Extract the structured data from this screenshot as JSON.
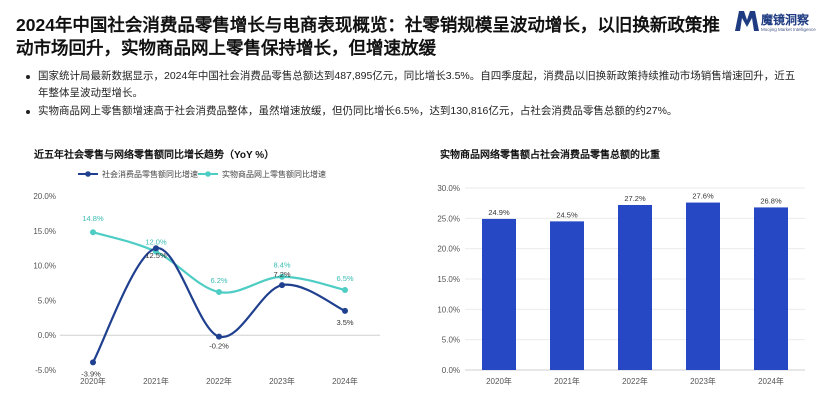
{
  "title": "2024年中国社会消费品零售增长与电商表现概览：社零销规模呈波动增长，以旧换新政策推动市场回升，实物商品网上零售保持增长，但增速放缓",
  "brand": {
    "name": "魔镜洞察",
    "subtitle": "Moojing Market Intelligence",
    "color": "#1f3b82"
  },
  "bullets": [
    "国家统计局最新数据显示，2024年中国社会消费品零售总额达到487,895亿元，同比增长3.5%。自四季度起，消费品以旧换新政策持续推动市场销售增速回升，近五年整体呈波动型增长。",
    "实物商品网上零售额增速高于社会消费品整体，虽然增速放缓，但仍同比增长6.5%，达到130,816亿元，占社会消费品零售总额的约27%。"
  ],
  "chart_data": [
    {
      "type": "line",
      "title": "近五年社会零售与网络零售额同比增长趋势（YoY %）",
      "categories": [
        "2020年",
        "2021年",
        "2022年",
        "2023年",
        "2024年"
      ],
      "series": [
        {
          "name": "社会消费品零售额同比增速",
          "values": [
            -3.9,
            12.5,
            -0.2,
            7.2,
            3.5
          ],
          "labels": [
            "-3.9%",
            "12.5%",
            "-0.2%",
            "7.2%",
            "3.5%"
          ],
          "color": "#1f3f8f"
        },
        {
          "name": "实物商品网上零售额同比增速",
          "values": [
            14.8,
            12.0,
            6.2,
            8.4,
            6.5
          ],
          "labels": [
            "14.8%",
            "12.0%",
            "6.2%",
            "8.4%",
            "6.5%"
          ],
          "color": "#4ecdc4"
        }
      ],
      "ylim": [
        -5,
        20
      ],
      "yticks": [
        -5,
        0,
        5,
        10,
        15,
        20
      ],
      "ytick_labels": [
        "-5.0%",
        "0.0%",
        "5.0%",
        "10.0%",
        "15.0%",
        "20.0%"
      ],
      "legend": "top"
    },
    {
      "type": "bar",
      "title": "实物商品网络零售额占社会消费品零售总额的比重",
      "categories": [
        "2020年",
        "2021年",
        "2022年",
        "2023年",
        "2024年"
      ],
      "values": [
        24.9,
        24.5,
        27.2,
        27.6,
        26.8
      ],
      "labels": [
        "24.9%",
        "24.5%",
        "27.2%",
        "27.6%",
        "26.8%"
      ],
      "ylim": [
        0,
        30
      ],
      "yticks": [
        0,
        5,
        10,
        15,
        20,
        25,
        30
      ],
      "ytick_labels": [
        "0.0%",
        "5.0%",
        "10.0%",
        "15.0%",
        "20.0%",
        "25.0%",
        "30.0%"
      ],
      "color": "#2648c4",
      "grid": true
    }
  ]
}
